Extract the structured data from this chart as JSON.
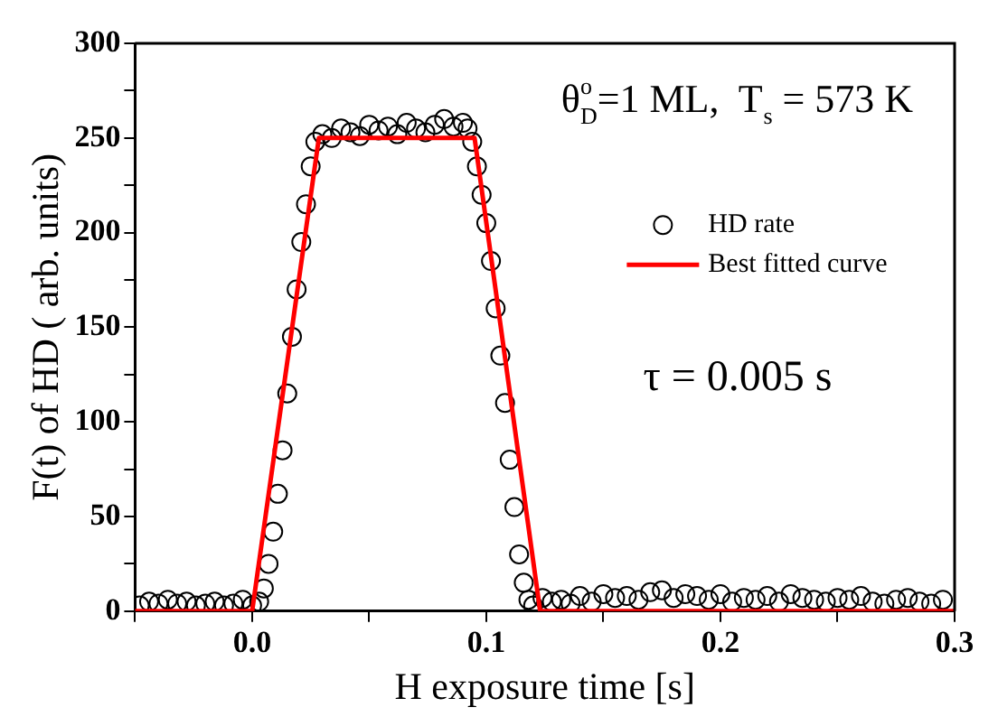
{
  "chart_data": {
    "type": "scatter",
    "xlabel": "H exposure time [s]",
    "ylabel": "F(t) of HD ( arb. units)",
    "annotations": [
      "θ$^{o}$$_{D}$=1 ML,  T$_{s}$ = 573 K",
      "τ = 0.005 s"
    ],
    "xlim": [
      -0.05,
      0.3
    ],
    "xticks": [
      {
        "value": -0.05,
        "label": null
      },
      {
        "value": 0,
        "label": "0.0"
      },
      {
        "value": 0.05,
        "label": null
      },
      {
        "value": 0.1,
        "label": "0.1"
      },
      {
        "value": 0.15,
        "label": null
      },
      {
        "value": 0.2,
        "label": "0.2"
      },
      {
        "value": 0.25,
        "label": null
      },
      {
        "value": 0.3,
        "label": "0.3"
      }
    ],
    "ylim": [
      0,
      300
    ],
    "yticks": [
      0,
      {
        "value": 25,
        "label": null
      },
      50,
      {
        "value": 75,
        "label": null
      },
      100,
      {
        "value": 125,
        "label": null
      },
      150,
      {
        "value": 175,
        "label": null
      },
      200,
      {
        "value": 225,
        "label": null
      },
      250,
      {
        "value": 275,
        "label": null
      },
      300
    ],
    "grid": false,
    "legend": "right",
    "series": [
      {
        "name": "HD rate",
        "type": "scatter",
        "marker": "circle",
        "color": "#000000",
        "x": [
          -0.048,
          -0.044,
          -0.04,
          -0.036,
          -0.032,
          -0.028,
          -0.024,
          -0.02,
          -0.016,
          -0.012,
          -0.008,
          -0.004,
          0,
          0.003,
          0.005,
          0.007,
          0.009,
          0.011,
          0.013,
          0.015,
          0.017,
          0.019,
          0.021,
          0.023,
          0.025,
          0.027,
          0.03,
          0.034,
          0.038,
          0.042,
          0.046,
          0.05,
          0.054,
          0.058,
          0.062,
          0.066,
          0.07,
          0.074,
          0.078,
          0.082,
          0.086,
          0.09,
          0.092,
          0.094,
          0.096,
          0.098,
          0.1,
          0.102,
          0.104,
          0.106,
          0.108,
          0.11,
          0.112,
          0.114,
          0.116,
          0.118,
          0.12,
          0.124,
          0.128,
          0.132,
          0.136,
          0.14,
          0.145,
          0.15,
          0.155,
          0.16,
          0.165,
          0.17,
          0.175,
          0.18,
          0.185,
          0.19,
          0.195,
          0.2,
          0.205,
          0.21,
          0.215,
          0.22,
          0.225,
          0.23,
          0.235,
          0.24,
          0.245,
          0.25,
          0.255,
          0.26,
          0.265,
          0.27,
          0.275,
          0.28,
          0.285,
          0.29,
          0.295
        ],
        "values": [
          3,
          5,
          4,
          6,
          4,
          5,
          3,
          4,
          5,
          3,
          4,
          6,
          3,
          5,
          12,
          25,
          42,
          62,
          85,
          115,
          145,
          170,
          195,
          215,
          235,
          248,
          252,
          250,
          255,
          253,
          251,
          257,
          254,
          256,
          252,
          258,
          255,
          253,
          257,
          260,
          256,
          258,
          255,
          248,
          235,
          220,
          205,
          185,
          160,
          135,
          110,
          80,
          55,
          30,
          15,
          6,
          3,
          7,
          5,
          6,
          4,
          8,
          5,
          9,
          7,
          8,
          6,
          10,
          11,
          7,
          9,
          8,
          6,
          9,
          5,
          7,
          6,
          8,
          5,
          9,
          7,
          6,
          5,
          7,
          6,
          8,
          5,
          4,
          6,
          7,
          5,
          4,
          6
        ]
      },
      {
        "name": "Best fitted curve",
        "type": "line",
        "marker": "none",
        "color": "#ff0000",
        "x": [
          -0.05,
          0,
          0.0285,
          0.095,
          0.123,
          0.3
        ],
        "values": [
          0,
          0,
          250,
          250,
          0,
          0
        ]
      }
    ]
  }
}
